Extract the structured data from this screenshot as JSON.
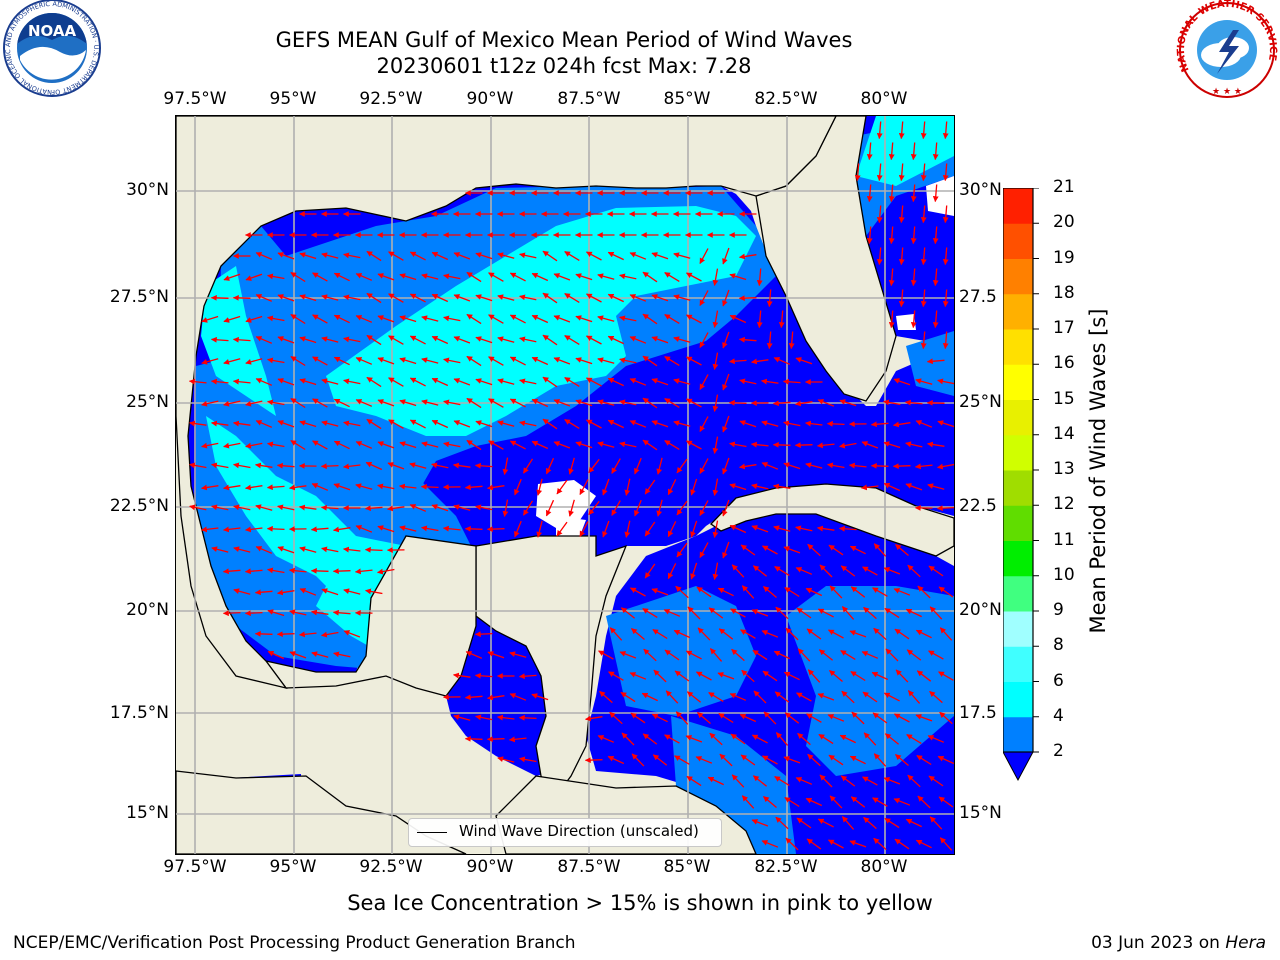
{
  "title": {
    "line1": "GEFS MEAN Gulf of Mexico Mean Period of Wind Waves",
    "line2": "20230601 t12z 024h fcst   Max: 7.28"
  },
  "map": {
    "longitude_ticks": [
      "97.5°W",
      "95°W",
      "92.5°W",
      "90°W",
      "87.5°W",
      "85°W",
      "82.5°W",
      "80°W"
    ],
    "latitude_ticks_left": [
      "30°N",
      "27.5°N",
      "25°N",
      "22.5°N",
      "20°N",
      "17.5°N",
      "15°N"
    ],
    "latitude_ticks_right": [
      "30°N",
      "27.5",
      "25°N",
      "22.5",
      "20°N",
      "17.5",
      "15°N"
    ],
    "legend": "Wind Wave Direction (unscaled)",
    "max_value": 7.28,
    "colors": {
      "land": "#eeeddc",
      "band_2_4": "#0000ff",
      "band_4_6": "#0080ff",
      "band_6_8": "#00ffff",
      "arrows": "#ff0000",
      "grid": "#b0b0b0"
    }
  },
  "colorbar": {
    "label": "Mean Period of Wind Waves [s]",
    "ticks": [
      "2",
      "4",
      "6",
      "8",
      "9",
      "10",
      "11",
      "12",
      "13",
      "14",
      "15",
      "16",
      "17",
      "18",
      "19",
      "20",
      "21"
    ],
    "colors": [
      "#0080ff",
      "#00ffff",
      "#40ffff",
      "#a0ffff",
      "#40ff80",
      "#00ee00",
      "#60dd00",
      "#a0dd00",
      "#d0ff00",
      "#e8f000",
      "#ffff00",
      "#ffe000",
      "#ffb000",
      "#ff8000",
      "#ff5000",
      "#ff2000",
      "#ff0000"
    ]
  },
  "caption": "Sea Ice Concentration > 15% is shown in pink to yellow",
  "footer": {
    "credit": "NCEP/EMC/Verification Post Processing Product Generation Branch",
    "date": "03 Jun 2023 on",
    "host": "Hera"
  },
  "logos": {
    "noaa_text": "NOAA",
    "noaa_ring": "NATIONAL OCEANIC AND ATMOSPHERIC ADMINISTRATION · U.S. DEPARTMENT OF COMMERCE",
    "nws_ring": "NATIONAL WEATHER SERVICE"
  }
}
